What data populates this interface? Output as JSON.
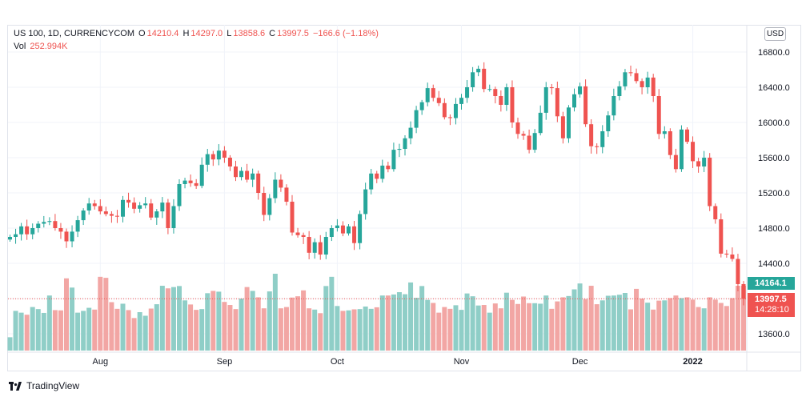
{
  "legend": {
    "symbol": "US 100, 1D, CURRENCYCOM",
    "open_label": "O",
    "open": "14210.4",
    "high_label": "H",
    "high": "14297.0",
    "low_label": "L",
    "low": "13858.6",
    "close_label": "C",
    "close": "13997.5",
    "change": "−166.6 (−1.18%)",
    "vol_label": "Vol",
    "vol": "252.994K"
  },
  "currency_button": "USD",
  "last_prices": {
    "green_badge": "14164.1",
    "red_badge": "13997.5",
    "countdown": "14:28:10"
  },
  "footer": {
    "brand": "TradingView"
  },
  "colors": {
    "up": "#26a69a",
    "down": "#ef5350",
    "up_volume": "#8fcec7",
    "down_volume": "#f2a6a4",
    "grid": "#f0f3fa",
    "text": "#131722"
  },
  "chart_data": {
    "type": "candlestick",
    "symbol": "US 100",
    "interval": "1D",
    "y_axis": {
      "ticks": [
        13600,
        14000,
        14400,
        14800,
        15200,
        15600,
        16000,
        16400,
        16800
      ],
      "ylim": [
        13400,
        16900
      ]
    },
    "x_axis": {
      "labels": [
        {
          "label": "Aug",
          "index": 16
        },
        {
          "label": "Sep",
          "index": 38
        },
        {
          "label": "Oct",
          "index": 58
        },
        {
          "label": "Nov",
          "index": 80
        },
        {
          "label": "Dec",
          "index": 101
        },
        {
          "label": "2022",
          "index": 121
        }
      ]
    },
    "last_values": [
      14164.1,
      13997.5
    ],
    "closes": [
      14700,
      14730,
      14820,
      14730,
      14800,
      14850,
      14870,
      14880,
      14800,
      14760,
      14650,
      14760,
      14890,
      15000,
      15080,
      15050,
      14990,
      14960,
      14940,
      14930,
      15120,
      15090,
      15020,
      15060,
      15080,
      14920,
      14990,
      15090,
      14800,
      15050,
      15300,
      15340,
      15310,
      15280,
      15520,
      15640,
      15580,
      15680,
      15600,
      15500,
      15380,
      15450,
      15350,
      15420,
      15200,
      14950,
      15140,
      15350,
      15260,
      15100,
      14750,
      14720,
      14700,
      14520,
      14640,
      14500,
      14700,
      14800,
      14830,
      14740,
      14820,
      14630,
      14960,
      15240,
      15420,
      15360,
      15510,
      15470,
      15690,
      15700,
      15820,
      15940,
      16140,
      16230,
      16390,
      16280,
      16220,
      16060,
      16050,
      16210,
      16280,
      16400,
      16570,
      16610,
      16380,
      16380,
      16300,
      16200,
      16400,
      16000,
      15870,
      15850,
      15690,
      15880,
      16110,
      16400,
      16390,
      16070,
      15820,
      16170,
      16320,
      16410,
      15980,
      15730,
      15720,
      15900,
      16080,
      16300,
      16410,
      16570,
      16560,
      16470,
      16400,
      16510,
      16300,
      15870,
      15900,
      15630,
      15470,
      15920,
      15780,
      15560,
      15500,
      15600,
      15050,
      14900,
      14510,
      14500,
      14450,
      14164.1,
      13997.5
    ],
    "volumes_k": [
      52,
      155,
      148,
      140,
      170,
      162,
      147,
      215,
      158,
      157,
      282,
      246,
      148,
      155,
      167,
      160,
      288,
      284,
      189,
      163,
      183,
      158,
      127,
      150,
      136,
      164,
      181,
      253,
      243,
      248,
      252,
      196,
      180,
      159,
      162,
      224,
      233,
      230,
      190,
      178,
      162,
      203,
      248,
      233,
      208,
      165,
      231,
      300,
      165,
      170,
      207,
      212,
      235,
      165,
      160,
      146,
      252,
      288,
      174,
      155,
      157,
      161,
      162,
      172,
      163,
      169,
      215,
      215,
      219,
      228,
      220,
      266,
      206,
      252,
      198,
      186,
      148,
      170,
      163,
      177,
      159,
      223,
      212,
      176,
      178,
      148,
      184,
      165,
      226,
      198,
      182,
      211,
      185,
      185,
      183,
      215,
      163,
      192,
      208,
      213,
      239,
      262,
      201,
      253,
      181,
      196,
      214,
      215,
      218,
      225,
      161,
      241,
      203,
      187,
      160,
      195,
      196,
      205,
      215,
      205,
      208,
      199,
      170,
      165,
      208,
      199,
      186,
      174,
      205,
      253,
      253
    ]
  }
}
